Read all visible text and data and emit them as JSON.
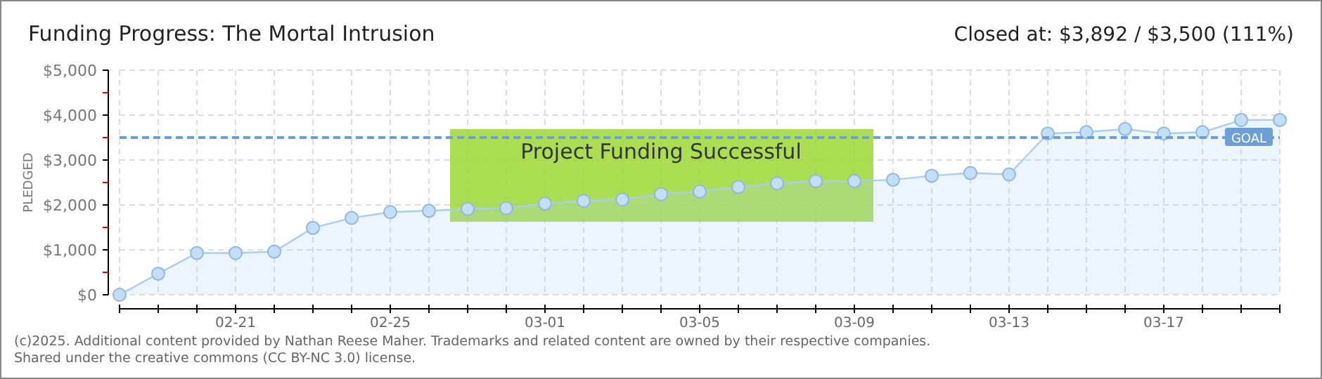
{
  "chart_data": {
    "type": "area",
    "title": "Funding Progress: The Mortal Intrusion",
    "subtitle": "Closed at: $3,892 / $3,500 (111%)",
    "ylabel": "PLEDGED",
    "categories": [
      null,
      null,
      null,
      "02-21",
      null,
      null,
      null,
      "02-25",
      null,
      null,
      null,
      "03-01",
      null,
      null,
      null,
      "03-05",
      null,
      null,
      null,
      "03-09",
      null,
      null,
      null,
      "03-13",
      null,
      null,
      null,
      "03-17",
      null,
      null,
      null
    ],
    "series": [
      {
        "color": "#a9cdf0",
        "values": [
          0,
          470,
          930,
          930,
          960,
          1490,
          1710,
          1840,
          1870,
          1910,
          1930,
          2030,
          2090,
          2120,
          2240,
          2300,
          2400,
          2480,
          2530,
          2530,
          2560,
          2650,
          2710,
          2680,
          3590,
          3620,
          3690,
          3590,
          3620,
          3890,
          3892
        ]
      }
    ],
    "ylim": [
      0,
      5000
    ],
    "yticks": [
      {
        "value": 0,
        "label": "$0"
      },
      {
        "value": 500,
        "label": null
      },
      {
        "value": 1000,
        "label": "$1,000"
      },
      {
        "value": 1500,
        "label": null
      },
      {
        "value": 2000,
        "label": "$2,000"
      },
      {
        "value": 2500,
        "label": null
      },
      {
        "value": 3000,
        "label": "$3,000"
      },
      {
        "value": 3500,
        "label": null
      },
      {
        "value": 4000,
        "label": "$4,000"
      },
      {
        "value": 4500,
        "label": null
      },
      {
        "value": 5000,
        "label": "$5,000"
      }
    ],
    "ref_lines": [
      {
        "axis": "y",
        "value": 3500,
        "label": "GOAL",
        "color": "#6a9fd8",
        "line_style": "dashed"
      }
    ],
    "annotations": [
      "Project Funding Successful",
      "(c)2025. Additional content provided by Nathan Reese Maher. Trademarks and related content are owned by their respective companies.",
      "Shared under the creative commons (CC BY-NC 3.0) license."
    ],
    "grid": true,
    "marker": "circle"
  }
}
